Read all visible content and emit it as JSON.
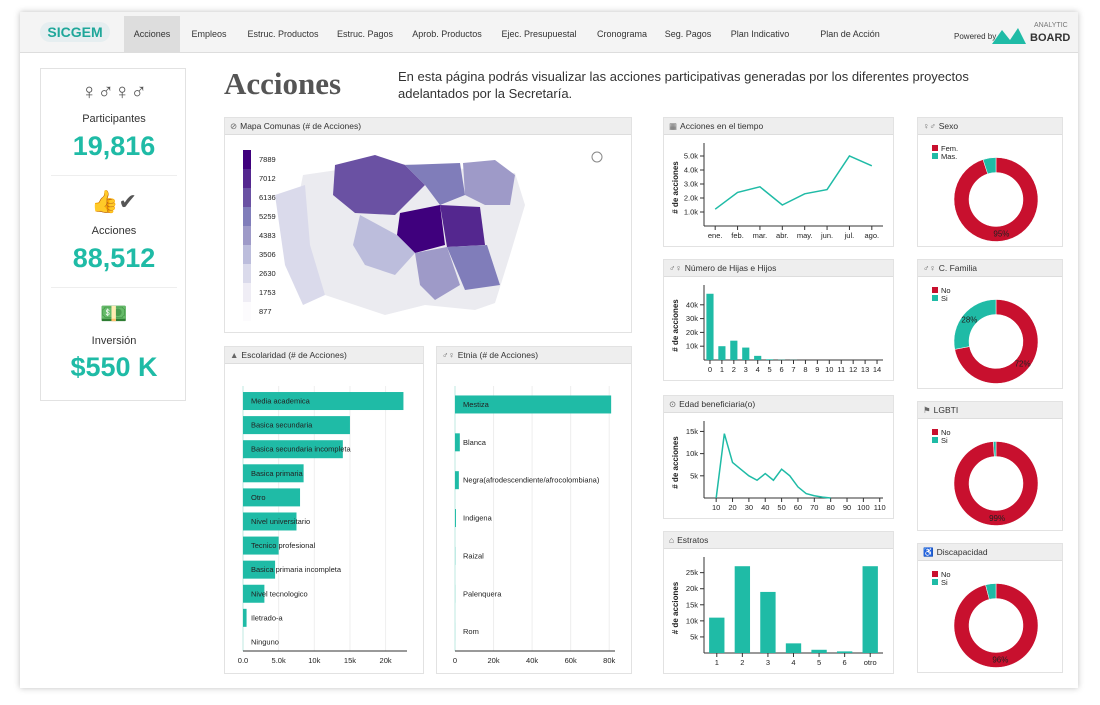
{
  "nav": {
    "logo": "SICGEM",
    "tabs": [
      "Acciones",
      "Empleos",
      "Estruc. Productos",
      "Estruc. Pagos",
      "Aprob. Productos",
      "Ejec. Presupuestal",
      "Cronograma",
      "Seg. Pagos",
      "Plan Indicativo",
      "Plan de Acción"
    ],
    "powered": "Powered by",
    "brand_top": "ANALYTIC",
    "brand_bottom": "BOARD"
  },
  "kpis": [
    {
      "label": "Participantes",
      "value": "19,816"
    },
    {
      "label": "Acciones",
      "value": "88,512"
    },
    {
      "label": "Inversión",
      "value": "$550 K"
    }
  ],
  "header": {
    "title": "Acciones",
    "description": "En esta página podrás visualizar las acciones participativas generadas por los diferentes proyectos adelantados por la Secretaría."
  },
  "map": {
    "title": "Mapa Comunas (# de Acciones)",
    "legend": [
      7889,
      7012,
      6136,
      5259,
      4383,
      3506,
      2630,
      1753,
      877
    ],
    "colors": [
      "#3f007d",
      "#54278f",
      "#6a51a3",
      "#807dba",
      "#9e9ac8",
      "#bcbddc",
      "#dadaeb",
      "#efedf5",
      "#fcfbfd"
    ]
  },
  "chart_data": [
    {
      "type": "line",
      "title": "Acciones en el tiempo",
      "y_label": "# de acciones",
      "color": "#1fbba6",
      "categories": [
        "ene.",
        "feb.",
        "mar.",
        "abr.",
        "may.",
        "jun.",
        "jul.",
        "ago."
      ],
      "values": [
        1200,
        2400,
        2800,
        1500,
        2300,
        2600,
        5000,
        4300
      ],
      "ylim": [
        0,
        5500
      ],
      "yticks": [
        {
          "value": 1000,
          "label": "1.0k"
        },
        {
          "value": 2000,
          "label": "2.0k"
        },
        {
          "value": 3000,
          "label": "3.0k"
        },
        {
          "value": 4000,
          "label": "4.0k"
        },
        {
          "value": 5000,
          "label": "5.0k"
        }
      ]
    },
    {
      "type": "bar",
      "title": "Número de Hijas e Hijos",
      "y_label": "# de acciones",
      "color": "#1fbba6",
      "categories": [
        "0",
        "1",
        "2",
        "3",
        "4",
        "5",
        "6",
        "7",
        "8",
        "9",
        "10",
        "11",
        "12",
        "13",
        "14"
      ],
      "values": [
        48000,
        10000,
        14000,
        9000,
        3000,
        500,
        200,
        100,
        0,
        0,
        0,
        0,
        0,
        0,
        0
      ],
      "ylim": [
        0,
        50000
      ],
      "yticks": [
        {
          "value": 10000,
          "label": "10k"
        },
        {
          "value": 20000,
          "label": "20k"
        },
        {
          "value": 30000,
          "label": "30k"
        },
        {
          "value": 40000,
          "label": "40k"
        }
      ]
    },
    {
      "type": "line",
      "title": "Edad beneficiaria(o)",
      "y_label": "# de acciones",
      "color": "#1fbba6",
      "x": [
        10,
        15,
        20,
        25,
        30,
        35,
        40,
        45,
        50,
        55,
        60,
        65,
        70,
        75,
        80
      ],
      "values": [
        0,
        14500,
        8000,
        6500,
        5000,
        4000,
        5500,
        4000,
        6500,
        5000,
        2500,
        1000,
        500,
        200,
        0
      ],
      "xlim": [
        5,
        112
      ],
      "xticks": [
        10,
        20,
        30,
        40,
        50,
        60,
        70,
        80,
        90,
        100,
        110
      ],
      "ylim": [
        0,
        16000
      ],
      "yticks": [
        {
          "value": 5000,
          "label": "5k"
        },
        {
          "value": 10000,
          "label": "10k"
        },
        {
          "value": 15000,
          "label": "15k"
        }
      ]
    },
    {
      "type": "bar",
      "title": "Estratos",
      "y_label": "# de acciones",
      "color": "#1fbba6",
      "categories": [
        "1",
        "2",
        "3",
        "4",
        "5",
        "6",
        "otro"
      ],
      "values": [
        11000,
        27000,
        19000,
        3000,
        1000,
        500,
        27000
      ],
      "ylim": [
        0,
        28000
      ],
      "yticks": [
        {
          "value": 5000,
          "label": "5k"
        },
        {
          "value": 10000,
          "label": "10k"
        },
        {
          "value": 15000,
          "label": "15k"
        },
        {
          "value": 20000,
          "label": "20k"
        },
        {
          "value": 25000,
          "label": "25k"
        }
      ]
    },
    {
      "type": "hbar",
      "title": "Escolaridad (# de Acciones)",
      "color": "#1fbba6",
      "grid": true,
      "categories": [
        "Media academica",
        "Basica secundaria",
        "Basica secundaria incompleta",
        "Basica primaria",
        "Otro",
        "Nivel universitario",
        "Tecnico profesional",
        "Basica primaria incompleta",
        "Nivel tecnologico",
        "Iletrado-a",
        "Ninguno"
      ],
      "values": [
        22500,
        15000,
        14000,
        8500,
        8000,
        7500,
        5000,
        4500,
        3000,
        500,
        0
      ],
      "xlim": [
        0,
        23000
      ],
      "xticks": [
        {
          "value": 0,
          "label": "0.0"
        },
        {
          "value": 5000,
          "label": "5.0k"
        },
        {
          "value": 10000,
          "label": "10k"
        },
        {
          "value": 15000,
          "label": "15k"
        },
        {
          "value": 20000,
          "label": "20k"
        }
      ]
    },
    {
      "type": "hbar",
      "title": "Etnia (# de Acciones)",
      "color": "#1fbba6",
      "grid": true,
      "categories": [
        "Mestiza",
        "Blanca",
        "Negra(afrodescendiente/afrocolombiana)",
        "Indigena",
        "Raizal",
        "Palenquera",
        "Rom"
      ],
      "values": [
        81000,
        2500,
        2000,
        500,
        100,
        50,
        20
      ],
      "xlim": [
        0,
        83000
      ],
      "xticks": [
        0,
        {
          "value": 20000,
          "label": "20k"
        },
        {
          "value": 40000,
          "label": "40k"
        },
        {
          "value": 60000,
          "label": "60k"
        },
        {
          "value": 80000,
          "label": "80k"
        }
      ]
    },
    {
      "type": "donut",
      "title": "Sexo",
      "categories": [
        "Fem.",
        "Mas."
      ],
      "values": [
        95,
        5
      ],
      "value_labels": [
        "95%",
        null
      ],
      "colors": [
        "#c8102e",
        "#1fbba6"
      ]
    },
    {
      "type": "donut",
      "title": "C. Familia",
      "categories": [
        "No",
        "Si"
      ],
      "values": [
        72,
        28
      ],
      "value_labels": [
        "72%",
        "28%"
      ],
      "colors": [
        "#c8102e",
        "#1fbba6"
      ]
    },
    {
      "type": "donut",
      "title": "LGBTI",
      "categories": [
        "No",
        "Si"
      ],
      "values": [
        99,
        1
      ],
      "value_labels": [
        "99%",
        null
      ],
      "colors": [
        "#c8102e",
        "#1fbba6"
      ]
    },
    {
      "type": "donut",
      "title": "Discapacidad",
      "categories": [
        "No",
        "Si"
      ],
      "values": [
        96,
        4
      ],
      "value_labels": [
        "96%",
        null
      ],
      "colors": [
        "#c8102e",
        "#1fbba6"
      ]
    }
  ]
}
